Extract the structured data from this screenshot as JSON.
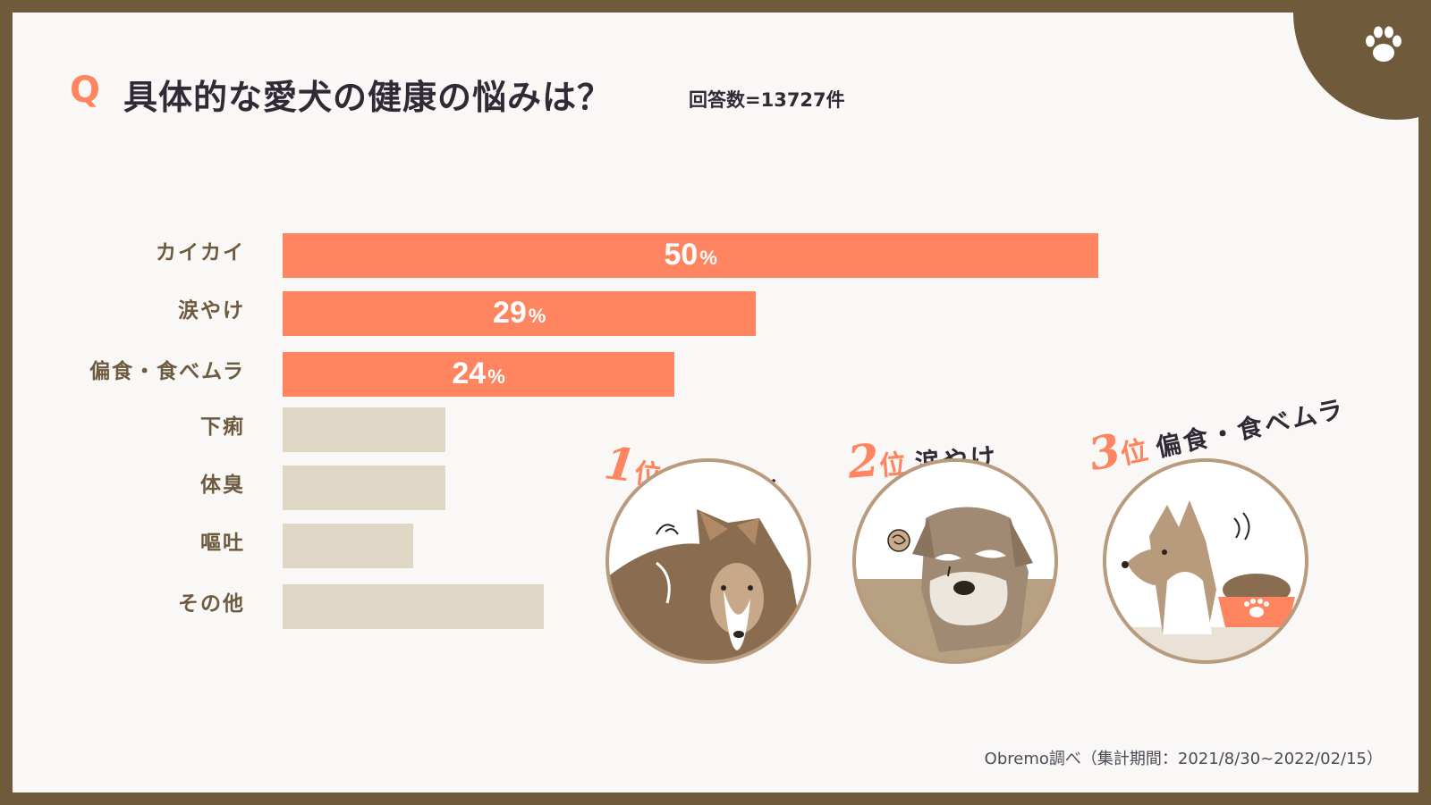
{
  "header": {
    "q_mark": "Q",
    "title": "具体的な愛犬の健康の悩みは？",
    "respondents": "回答数=13727件"
  },
  "colors": {
    "highlight_bar": "#ff8560",
    "muted_bar": "#e0d6c6",
    "frame": "#6f5a3c",
    "label": "#6e5a3e",
    "title": "#2e2a36"
  },
  "chart_data": {
    "type": "bar",
    "orientation": "horizontal",
    "categories": [
      "カイカイ",
      "涙やけ",
      "偏食・食べムラ",
      "下痢",
      "体臭",
      "嘔吐",
      "その他"
    ],
    "values": [
      50,
      29,
      24,
      10,
      10,
      8,
      16
    ],
    "value_labels": [
      "50",
      "29",
      "24",
      "",
      "",
      "",
      ""
    ],
    "unit": "%",
    "highlight_top": 3,
    "xlim": [
      0,
      52
    ]
  },
  "ranking": [
    {
      "rank": "1",
      "pos": "位",
      "name": "カイカイ",
      "icon": "dog-scratching-icon"
    },
    {
      "rank": "2",
      "pos": "位",
      "name": "涙やけ",
      "icon": "schnauzer-tear-stain-icon"
    },
    {
      "rank": "3",
      "pos": "位",
      "name": "偏食・食べムラ",
      "icon": "shiba-food-bowl-icon"
    }
  ],
  "footer": {
    "source": "Obremo調べ（集計期間：2021/8/30~2022/02/15）"
  }
}
